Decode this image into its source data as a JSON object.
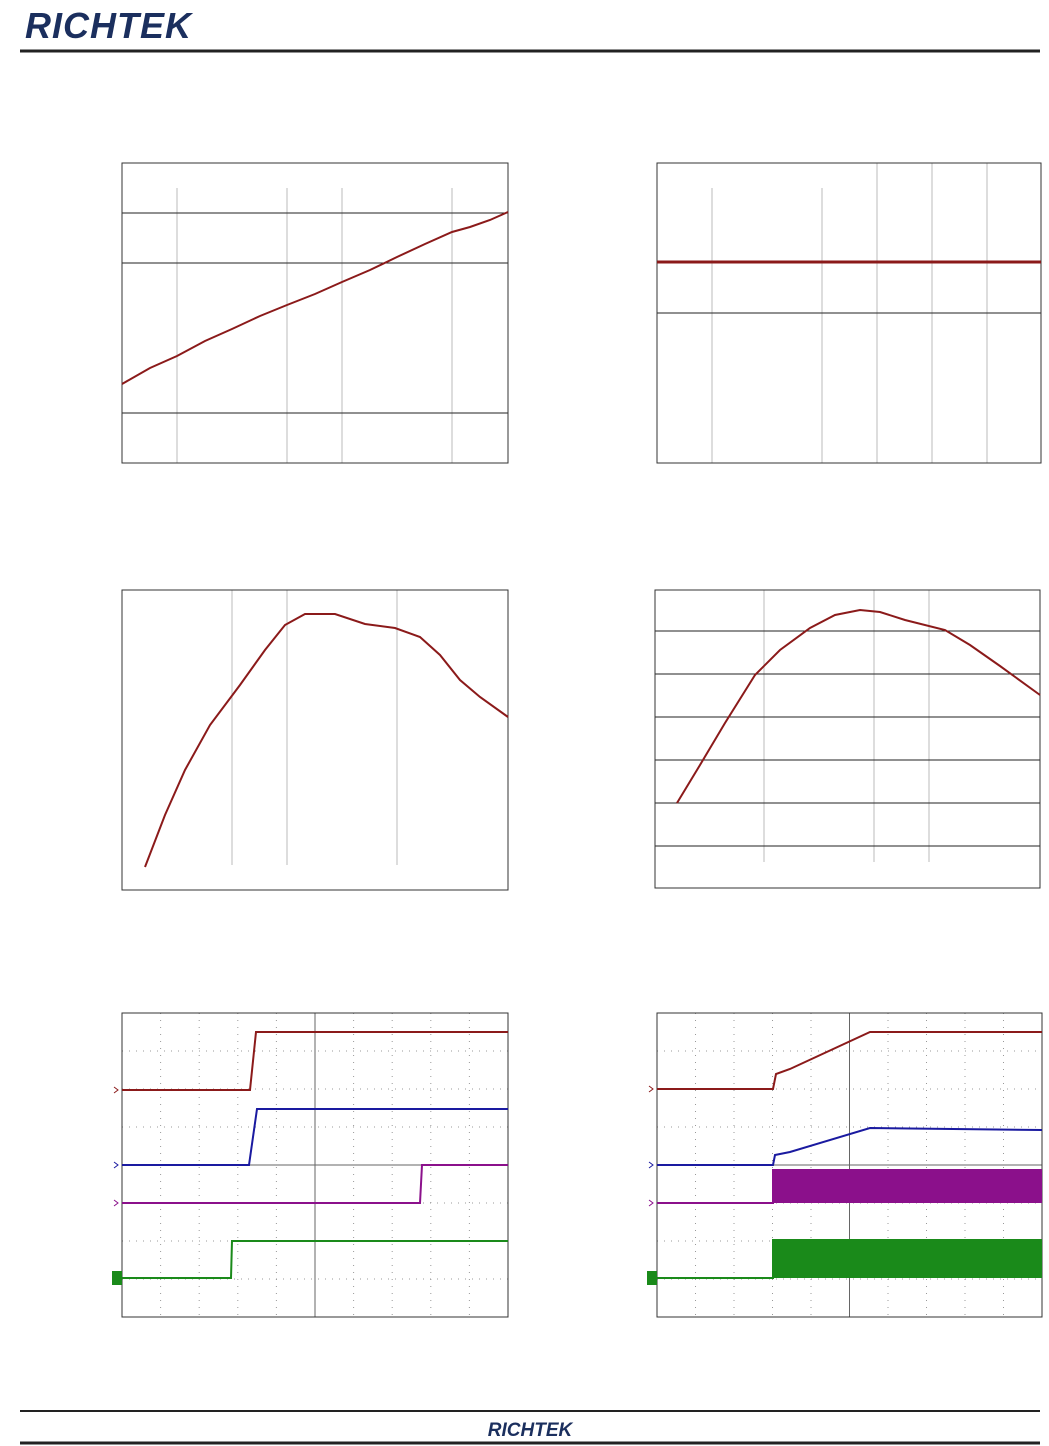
{
  "header": {
    "logo": "RICHTEK"
  },
  "footer": {
    "logo": "RICHTEK"
  }
}
